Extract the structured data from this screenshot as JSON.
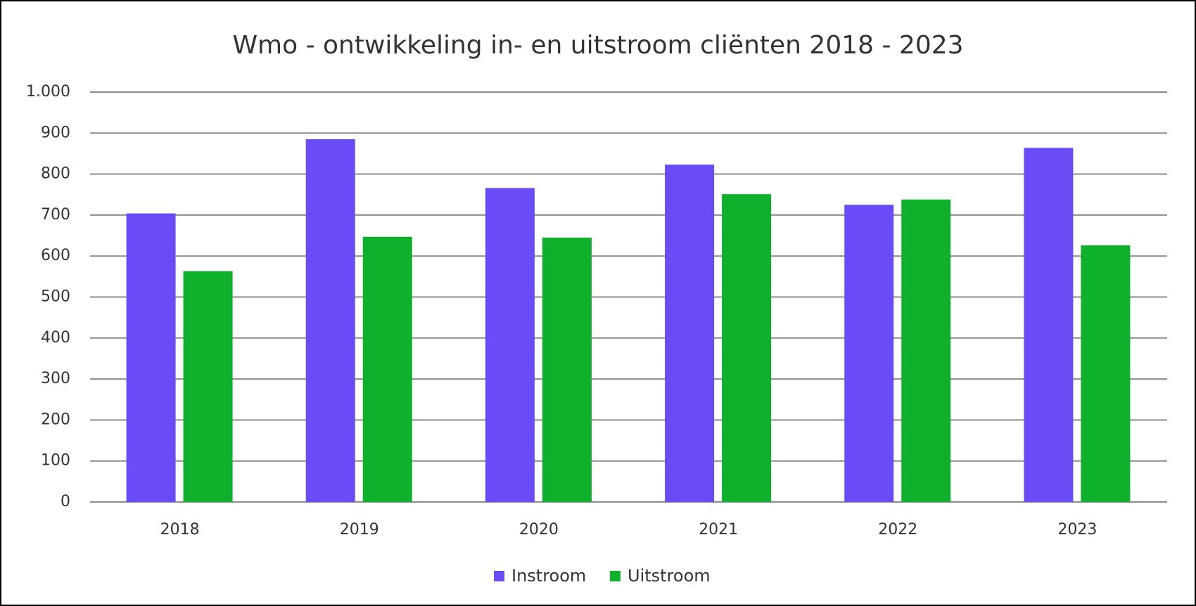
{
  "chart_data": {
    "type": "bar",
    "title": "Wmo -  ontwikkeling in- en uitstroom cliënten   2018 - 2023",
    "categories": [
      "2018",
      "2019",
      "2020",
      "2021",
      "2022",
      "2023"
    ],
    "series": [
      {
        "name": "Instroom",
        "color": "#6a4cf6",
        "values": [
          704,
          885,
          766,
          823,
          725,
          864
        ]
      },
      {
        "name": "Uitstroom",
        "color": "#0fb02c",
        "values": [
          563,
          647,
          645,
          751,
          738,
          626
        ]
      }
    ],
    "ylim": [
      0,
      1000
    ],
    "yticks": [
      0,
      100,
      200,
      300,
      400,
      500,
      600,
      700,
      800,
      900,
      {
        "value": 1000,
        "label": "1.000"
      }
    ],
    "grid": true,
    "legend": "bottom"
  }
}
